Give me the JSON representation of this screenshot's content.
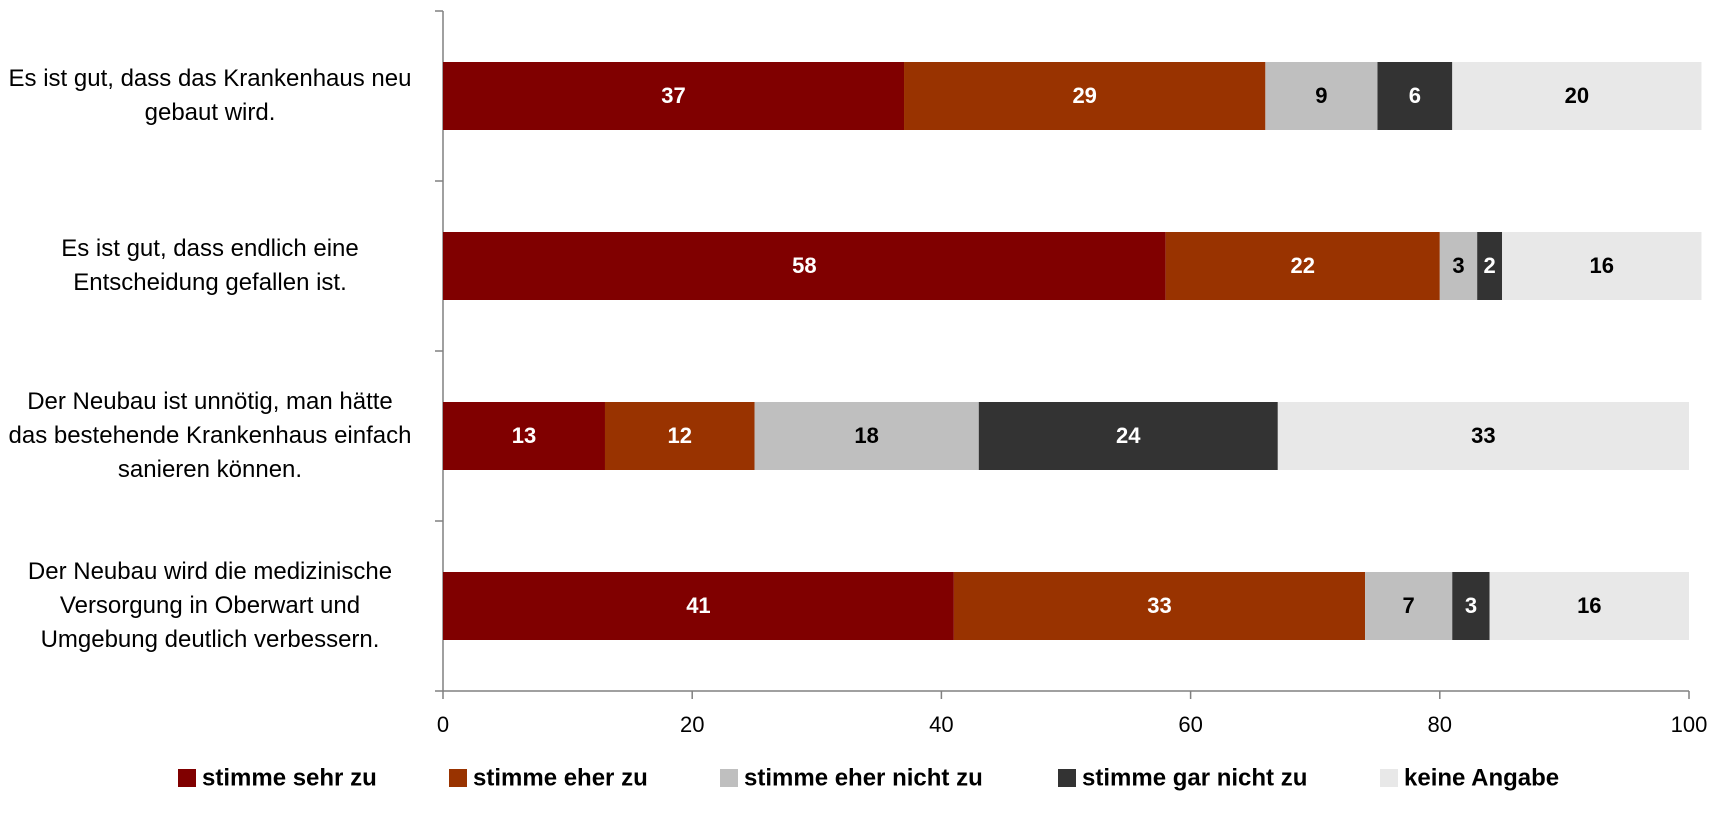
{
  "chart_data": {
    "type": "stacked-bar-horizontal",
    "categories": [
      "Es ist gut, dass das Krankenhaus neu gebaut wird.",
      "Es ist gut, dass endlich eine Entscheidung gefallen ist.",
      "Der Neubau ist unnötig, man hätte das bestehende Krankenhaus einfach sanieren können.",
      "Der Neubau wird die medizinische Versorgung in Oberwart und Umgebung deutlich verbessern."
    ],
    "series": [
      {
        "name": "stimme sehr zu",
        "color": "#800000",
        "values": [
          37,
          58,
          13,
          41
        ]
      },
      {
        "name": "stimme eher zu",
        "color": "#993300",
        "values": [
          29,
          22,
          12,
          33
        ]
      },
      {
        "name": "stimme eher nicht zu",
        "color": "#bfbfbf",
        "values": [
          9,
          3,
          18,
          7
        ]
      },
      {
        "name": "stimme gar nicht zu",
        "color": "#333333",
        "values": [
          6,
          2,
          24,
          3
        ]
      },
      {
        "name": "keine Angabe",
        "color": "#e8e8e8",
        "values": [
          20,
          16,
          33,
          16
        ]
      }
    ],
    "xlim": [
      0,
      100
    ],
    "xticks": [
      0,
      20,
      40,
      60,
      80,
      100
    ]
  }
}
